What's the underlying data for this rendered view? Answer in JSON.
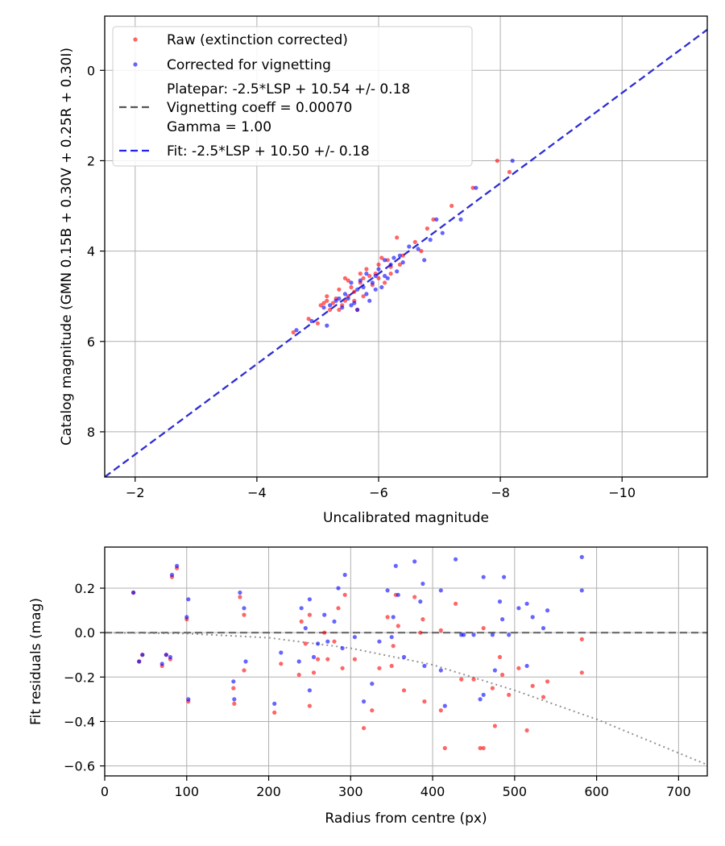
{
  "chart_data": [
    {
      "type": "scatter",
      "xlabel": "Uncalibrated magnitude",
      "ylabel": "Catalog magnitude (GMN 0.15B + 0.30V + 0.25R + 0.30I)",
      "xlim": [
        -1.5,
        -11.4
      ],
      "ylim": [
        9.0,
        -1.2
      ],
      "xticks": [
        -2,
        -4,
        -6,
        -8,
        -10
      ],
      "xtick_labels": [
        "−2",
        "−4",
        "−6",
        "−8",
        "−10"
      ],
      "yticks": [
        0,
        2,
        4,
        6,
        8
      ],
      "ytick_labels": [
        "0",
        "2",
        "4",
        "6",
        "8"
      ],
      "grid": true,
      "legend": {
        "position": "top-left",
        "entries": [
          {
            "label": "Raw (extinction corrected)",
            "marker": "point",
            "color": "#ff0000"
          },
          {
            "label": "Corrected for vignetting",
            "marker": "point",
            "color": "#0000ff"
          },
          {
            "label": "Platepar: -2.5*LSP + 10.54 +/- 0.18",
            "marker": "none",
            "color": ""
          },
          {
            "label": "Vignetting coeff = 0.00070",
            "marker": "dash",
            "color": "#555555"
          },
          {
            "label": "Gamma = 1.00",
            "marker": "none",
            "color": ""
          },
          {
            "label": "Fit: -2.5*LSP + 10.50 +/- 0.18",
            "marker": "dash",
            "color": "#2222ee"
          }
        ]
      },
      "lines": [
        {
          "name": "Platepar",
          "x": [
            -1.5,
            -11.4
          ],
          "y": [
            9.0,
            -0.9
          ],
          "color": "#555555",
          "style": "dashed"
        },
        {
          "name": "Fit",
          "x": [
            -1.5,
            -11.4
          ],
          "y": [
            9.0,
            -0.9
          ],
          "color": "#2222ee",
          "style": "dashed"
        }
      ],
      "series": [
        {
          "name": "Raw (extinction corrected)",
          "color": "#ff0000",
          "points": [
            [
              -4.6,
              5.8
            ],
            [
              -4.85,
              5.5
            ],
            [
              -5.0,
              5.6
            ],
            [
              -5.05,
              5.2
            ],
            [
              -5.1,
              5.15
            ],
            [
              -5.15,
              5.1
            ],
            [
              -5.2,
              5.3
            ],
            [
              -5.25,
              5.15
            ],
            [
              -5.3,
              5.05
            ],
            [
              -5.35,
              4.85
            ],
            [
              -5.4,
              5.2
            ],
            [
              -5.45,
              4.6
            ],
            [
              -5.5,
              4.65
            ],
            [
              -5.5,
              5.0
            ],
            [
              -5.55,
              4.8
            ],
            [
              -5.6,
              5.1
            ],
            [
              -5.65,
              5.3
            ],
            [
              -5.7,
              4.5
            ],
            [
              -5.75,
              4.6
            ],
            [
              -5.8,
              4.4
            ],
            [
              -5.85,
              4.55
            ],
            [
              -5.9,
              4.75
            ],
            [
              -5.95,
              4.5
            ],
            [
              -6.0,
              4.3
            ],
            [
              -6.05,
              4.15
            ],
            [
              -6.1,
              4.7
            ],
            [
              -6.15,
              4.2
            ],
            [
              -6.2,
              4.35
            ],
            [
              -6.3,
              3.7
            ],
            [
              -6.35,
              4.3
            ],
            [
              -6.4,
              4.1
            ],
            [
              -6.6,
              3.8
            ],
            [
              -6.7,
              4.0
            ],
            [
              -6.8,
              3.5
            ],
            [
              -6.9,
              3.3
            ],
            [
              -7.2,
              3.0
            ],
            [
              -7.55,
              2.6
            ],
            [
              -7.95,
              2.0
            ],
            [
              -8.15,
              2.25
            ],
            [
              -5.15,
              5.0
            ],
            [
              -5.35,
              5.3
            ],
            [
              -5.6,
              4.9
            ],
            [
              -5.75,
              5.0
            ],
            [
              -6.0,
              4.6
            ],
            [
              -6.2,
              4.5
            ],
            [
              -5.45,
              5.1
            ],
            [
              -5.7,
              4.7
            ]
          ]
        },
        {
          "name": "Corrected for vignetting",
          "color": "#0000ff",
          "points": [
            [
              -4.65,
              5.75
            ],
            [
              -4.9,
              5.55
            ],
            [
              -5.15,
              5.65
            ],
            [
              -5.1,
              5.25
            ],
            [
              -5.2,
              5.2
            ],
            [
              -5.3,
              5.1
            ],
            [
              -5.4,
              5.25
            ],
            [
              -5.45,
              4.95
            ],
            [
              -5.5,
              5.05
            ],
            [
              -5.55,
              4.7
            ],
            [
              -5.6,
              5.15
            ],
            [
              -5.65,
              4.85
            ],
            [
              -5.7,
              4.65
            ],
            [
              -5.75,
              4.8
            ],
            [
              -5.8,
              4.5
            ],
            [
              -5.85,
              5.1
            ],
            [
              -5.9,
              4.7
            ],
            [
              -5.95,
              4.55
            ],
            [
              -6.0,
              4.4
            ],
            [
              -6.05,
              4.8
            ],
            [
              -6.1,
              4.2
            ],
            [
              -6.15,
              4.6
            ],
            [
              -6.2,
              4.3
            ],
            [
              -6.25,
              4.15
            ],
            [
              -6.3,
              4.45
            ],
            [
              -6.4,
              4.25
            ],
            [
              -6.5,
              3.9
            ],
            [
              -6.65,
              3.95
            ],
            [
              -6.75,
              4.2
            ],
            [
              -6.85,
              3.75
            ],
            [
              -6.95,
              3.3
            ],
            [
              -7.05,
              3.6
            ],
            [
              -7.35,
              3.3
            ],
            [
              -7.6,
              2.6
            ],
            [
              -8.2,
              2.0
            ],
            [
              -5.35,
              5.05
            ],
            [
              -5.55,
              5.2
            ],
            [
              -5.95,
              4.85
            ],
            [
              -6.1,
              4.55
            ],
            [
              -5.65,
              5.3
            ],
            [
              -5.8,
              4.95
            ],
            [
              -6.35,
              4.1
            ]
          ]
        }
      ]
    },
    {
      "type": "scatter",
      "xlabel": "Radius from centre (px)",
      "ylabel": "Fit residuals (mag)",
      "xlim": [
        0,
        735
      ],
      "ylim": [
        -0.645,
        0.385
      ],
      "xticks": [
        0,
        100,
        200,
        300,
        400,
        500,
        600,
        700
      ],
      "xtick_labels": [
        "0",
        "100",
        "200",
        "300",
        "400",
        "500",
        "600",
        "700"
      ],
      "yticks": [
        0.2,
        0.0,
        -0.2,
        -0.4,
        -0.6
      ],
      "ytick_labels": [
        "0.2",
        "0.0",
        "−0.2",
        "−0.4",
        "−0.6"
      ],
      "grid": true,
      "lines": [
        {
          "name": "zero",
          "style": "dashed",
          "color": "#555555",
          "x": [
            0,
            735
          ],
          "y": [
            0,
            0
          ]
        },
        {
          "name": "vignetting",
          "style": "dotted",
          "color": "#808080",
          "x": [
            0,
            100,
            200,
            300,
            400,
            500,
            600,
            735
          ],
          "y": [
            0,
            -0.004,
            -0.023,
            -0.07,
            -0.145,
            -0.26,
            -0.39,
            -0.595
          ]
        }
      ],
      "series": [
        {
          "name": "Raw (extinction corrected)",
          "color": "#ff0000",
          "points": [
            [
              35,
              0.18
            ],
            [
              42,
              -0.13
            ],
            [
              46,
              -0.1
            ],
            [
              70,
              -0.15
            ],
            [
              75,
              -0.1
            ],
            [
              80,
              -0.12
            ],
            [
              82,
              0.25
            ],
            [
              88,
              0.29
            ],
            [
              100,
              0.06
            ],
            [
              102,
              -0.31
            ],
            [
              157,
              -0.25
            ],
            [
              158,
              -0.32
            ],
            [
              165,
              0.16
            ],
            [
              170,
              -0.17
            ],
            [
              170,
              0.08
            ],
            [
              207,
              -0.36
            ],
            [
              215,
              -0.14
            ],
            [
              237,
              -0.19
            ],
            [
              240,
              0.05
            ],
            [
              245,
              -0.05
            ],
            [
              250,
              0.08
            ],
            [
              250,
              -0.33
            ],
            [
              255,
              -0.18
            ],
            [
              260,
              -0.12
            ],
            [
              268,
              0.0
            ],
            [
              272,
              -0.12
            ],
            [
              280,
              -0.04
            ],
            [
              285,
              0.11
            ],
            [
              290,
              -0.16
            ],
            [
              293,
              0.17
            ],
            [
              305,
              -0.12
            ],
            [
              316,
              -0.43
            ],
            [
              326,
              -0.35
            ],
            [
              335,
              -0.16
            ],
            [
              345,
              0.07
            ],
            [
              350,
              -0.15
            ],
            [
              352,
              -0.06
            ],
            [
              355,
              0.17
            ],
            [
              358,
              0.03
            ],
            [
              365,
              -0.26
            ],
            [
              378,
              0.16
            ],
            [
              385,
              -0.0
            ],
            [
              388,
              0.06
            ],
            [
              390,
              -0.31
            ],
            [
              410,
              -0.35
            ],
            [
              410,
              0.01
            ],
            [
              415,
              -0.52
            ],
            [
              428,
              0.13
            ],
            [
              435,
              -0.21
            ],
            [
              450,
              -0.21
            ],
            [
              458,
              -0.52
            ],
            [
              462,
              -0.52
            ],
            [
              462,
              0.02
            ],
            [
              473,
              -0.25
            ],
            [
              476,
              -0.42
            ],
            [
              482,
              -0.11
            ],
            [
              485,
              -0.19
            ],
            [
              493,
              -0.28
            ],
            [
              505,
              -0.16
            ],
            [
              515,
              -0.44
            ],
            [
              522,
              -0.24
            ],
            [
              535,
              -0.29
            ],
            [
              540,
              -0.22
            ],
            [
              582,
              -0.03
            ],
            [
              582,
              -0.18
            ]
          ]
        },
        {
          "name": "Corrected for vignetting",
          "color": "#0000ff",
          "points": [
            [
              35,
              0.18
            ],
            [
              42,
              -0.13
            ],
            [
              46,
              -0.1
            ],
            [
              70,
              -0.14
            ],
            [
              75,
              -0.1
            ],
            [
              80,
              -0.11
            ],
            [
              82,
              0.26
            ],
            [
              88,
              0.3
            ],
            [
              100,
              0.07
            ],
            [
              102,
              0.15
            ],
            [
              102,
              -0.3
            ],
            [
              157,
              -0.22
            ],
            [
              158,
              -0.3
            ],
            [
              165,
              0.18
            ],
            [
              170,
              0.11
            ],
            [
              172,
              -0.13
            ],
            [
              207,
              -0.32
            ],
            [
              215,
              -0.09
            ],
            [
              237,
              -0.13
            ],
            [
              240,
              0.11
            ],
            [
              245,
              0.02
            ],
            [
              250,
              0.15
            ],
            [
              250,
              -0.26
            ],
            [
              255,
              -0.11
            ],
            [
              260,
              -0.05
            ],
            [
              268,
              0.08
            ],
            [
              272,
              -0.04
            ],
            [
              280,
              0.05
            ],
            [
              285,
              0.2
            ],
            [
              290,
              -0.07
            ],
            [
              293,
              0.26
            ],
            [
              305,
              -0.02
            ],
            [
              316,
              -0.31
            ],
            [
              326,
              -0.23
            ],
            [
              335,
              -0.04
            ],
            [
              345,
              0.19
            ],
            [
              350,
              -0.02
            ],
            [
              352,
              0.07
            ],
            [
              355,
              0.3
            ],
            [
              358,
              0.17
            ],
            [
              365,
              -0.11
            ],
            [
              378,
              0.32
            ],
            [
              385,
              0.14
            ],
            [
              388,
              0.22
            ],
            [
              390,
              -0.15
            ],
            [
              410,
              -0.17
            ],
            [
              410,
              0.19
            ],
            [
              415,
              -0.33
            ],
            [
              428,
              0.33
            ],
            [
              435,
              -0.01
            ],
            [
              438,
              -0.01
            ],
            [
              450,
              -0.01
            ],
            [
              458,
              -0.3
            ],
            [
              462,
              -0.28
            ],
            [
              462,
              0.25
            ],
            [
              473,
              -0.01
            ],
            [
              476,
              -0.17
            ],
            [
              482,
              0.14
            ],
            [
              485,
              0.06
            ],
            [
              487,
              0.25
            ],
            [
              493,
              -0.01
            ],
            [
              505,
              0.11
            ],
            [
              515,
              0.13
            ],
            [
              515,
              -0.15
            ],
            [
              522,
              0.07
            ],
            [
              535,
              0.02
            ],
            [
              540,
              0.1
            ],
            [
              582,
              0.19
            ],
            [
              582,
              0.34
            ]
          ]
        }
      ]
    }
  ]
}
